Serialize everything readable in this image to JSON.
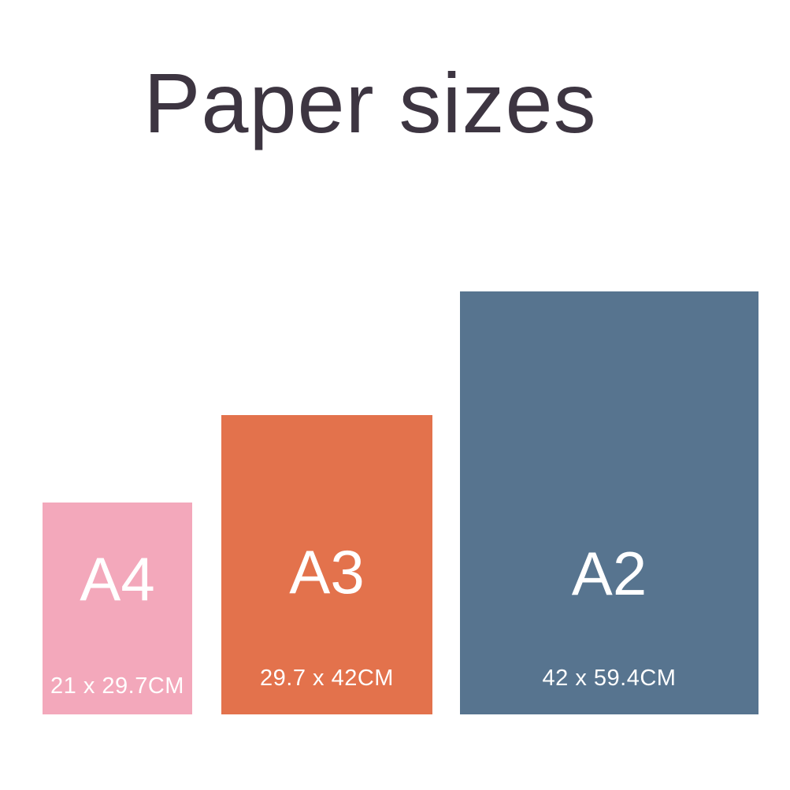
{
  "title": "Paper sizes",
  "sheets": [
    {
      "name": "A4",
      "dimensions": "21 x 29.7CM",
      "color": "#f3a8bb"
    },
    {
      "name": "A3",
      "dimensions": "29.7 x 42CM",
      "color": "#e3724c"
    },
    {
      "name": "A2",
      "dimensions": "42 x 59.4CM",
      "color": "#57748f"
    }
  ]
}
